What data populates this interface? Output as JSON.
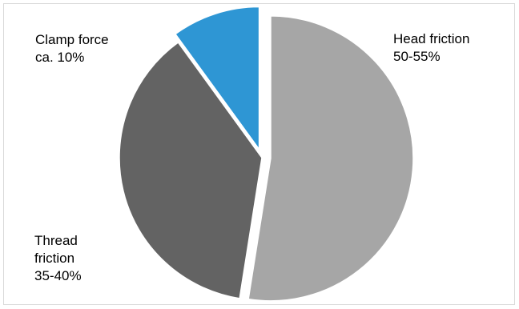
{
  "chart_data": {
    "type": "pie",
    "slices": [
      {
        "label_lines": [
          "Head friction",
          "50-55%"
        ],
        "value": 52.5,
        "color": "#a6a6a6",
        "exploded": true
      },
      {
        "label_lines": [
          "Thread",
          "friction",
          "35-40%"
        ],
        "value": 37.5,
        "color": "#636363",
        "exploded": false
      },
      {
        "label_lines": [
          "Clamp force",
          "ca. 10%"
        ],
        "value": 10,
        "color": "#2e96d4",
        "exploded": true
      }
    ],
    "start_angle_deg": 0,
    "direction": "clockwise",
    "slice_edge_color": "#ffffff"
  }
}
